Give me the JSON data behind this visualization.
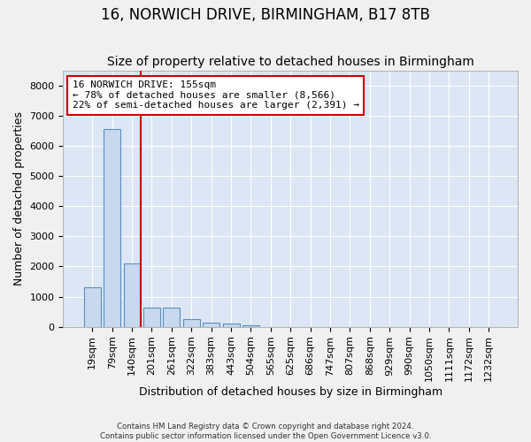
{
  "title1": "16, NORWICH DRIVE, BIRMINGHAM, B17 8TB",
  "title2": "Size of property relative to detached houses in Birmingham",
  "xlabel": "Distribution of detached houses by size in Birmingham",
  "ylabel": "Number of detached properties",
  "footnote1": "Contains HM Land Registry data © Crown copyright and database right 2024.",
  "footnote2": "Contains public sector information licensed under the Open Government Licence v3.0.",
  "annotation_title": "16 NORWICH DRIVE: 155sqm",
  "annotation_line1": "← 78% of detached houses are smaller (8,566)",
  "annotation_line2": "22% of semi-detached houses are larger (2,391) →",
  "bar_labels": [
    "19sqm",
    "79sqm",
    "140sqm",
    "201sqm",
    "261sqm",
    "322sqm",
    "383sqm",
    "443sqm",
    "504sqm",
    "565sqm",
    "625sqm",
    "686sqm",
    "747sqm",
    "807sqm",
    "868sqm",
    "929sqm",
    "990sqm",
    "1050sqm",
    "1111sqm",
    "1172sqm",
    "1232sqm"
  ],
  "bar_values": [
    1310,
    6560,
    2090,
    650,
    650,
    250,
    130,
    100,
    60,
    0,
    0,
    0,
    0,
    0,
    0,
    0,
    0,
    0,
    0,
    0,
    0
  ],
  "bar_color": "#c8d8ee",
  "bar_edge_color": "#5a8fc0",
  "vline_color": "#cc0000",
  "annotation_box_color": "#cc0000",
  "ylim": [
    0,
    8500
  ],
  "yticks": [
    0,
    1000,
    2000,
    3000,
    4000,
    5000,
    6000,
    7000,
    8000
  ],
  "background_color": "#dce6f5",
  "grid_color": "#ffffff",
  "fig_background": "#f0f0f0",
  "title1_fontsize": 12,
  "title2_fontsize": 10,
  "annotation_fontsize": 8,
  "ylabel_fontsize": 9,
  "xlabel_fontsize": 9,
  "tick_fontsize": 8
}
